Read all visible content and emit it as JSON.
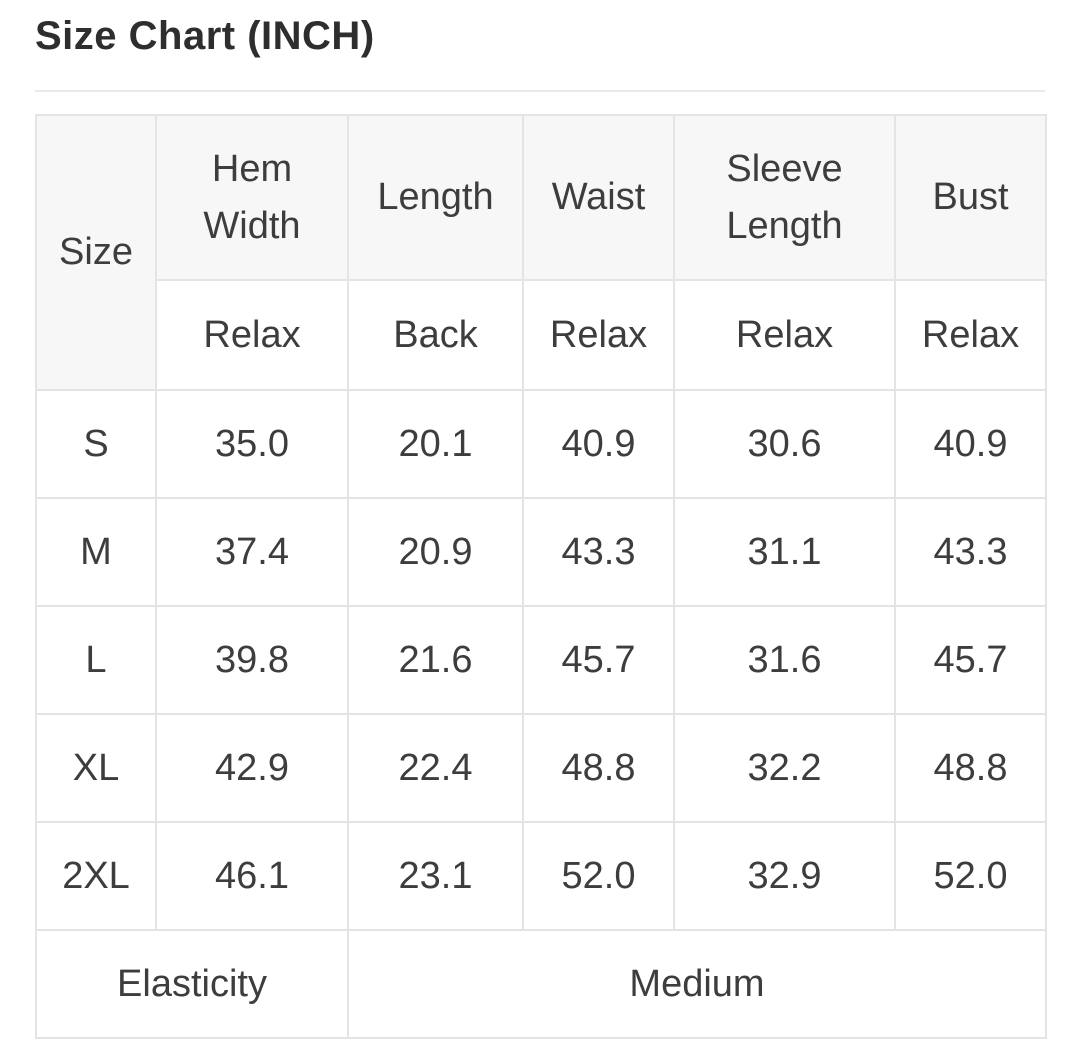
{
  "page": {
    "title": "Size Chart (INCH)"
  },
  "table": {
    "size_label": "Size",
    "columns": [
      {
        "label": "Hem Width",
        "fit": "Relax"
      },
      {
        "label": "Length",
        "fit": "Back"
      },
      {
        "label": "Waist",
        "fit": "Relax"
      },
      {
        "label": "Sleeve Length",
        "fit": "Relax"
      },
      {
        "label": "Bust",
        "fit": "Relax"
      }
    ],
    "rows": [
      {
        "size": "S",
        "values": [
          "35.0",
          "20.1",
          "40.9",
          "30.6",
          "40.9"
        ]
      },
      {
        "size": "M",
        "values": [
          "37.4",
          "20.9",
          "43.3",
          "31.1",
          "43.3"
        ]
      },
      {
        "size": "L",
        "values": [
          "39.8",
          "21.6",
          "45.7",
          "31.6",
          "45.7"
        ]
      },
      {
        "size": "XL",
        "values": [
          "42.9",
          "22.4",
          "48.8",
          "32.2",
          "48.8"
        ]
      },
      {
        "size": "2XL",
        "values": [
          "46.1",
          "23.1",
          "52.0",
          "32.9",
          "52.0"
        ]
      }
    ],
    "footer": {
      "label": "Elasticity",
      "value": "Medium"
    }
  },
  "colors": {
    "header_background": "#f7f7f7",
    "border": "#e4e4e4",
    "divider": "#e9e9e9",
    "title_text": "#2e2e2e",
    "body_text": "#3d3d3d",
    "page_background": "#ffffff"
  }
}
